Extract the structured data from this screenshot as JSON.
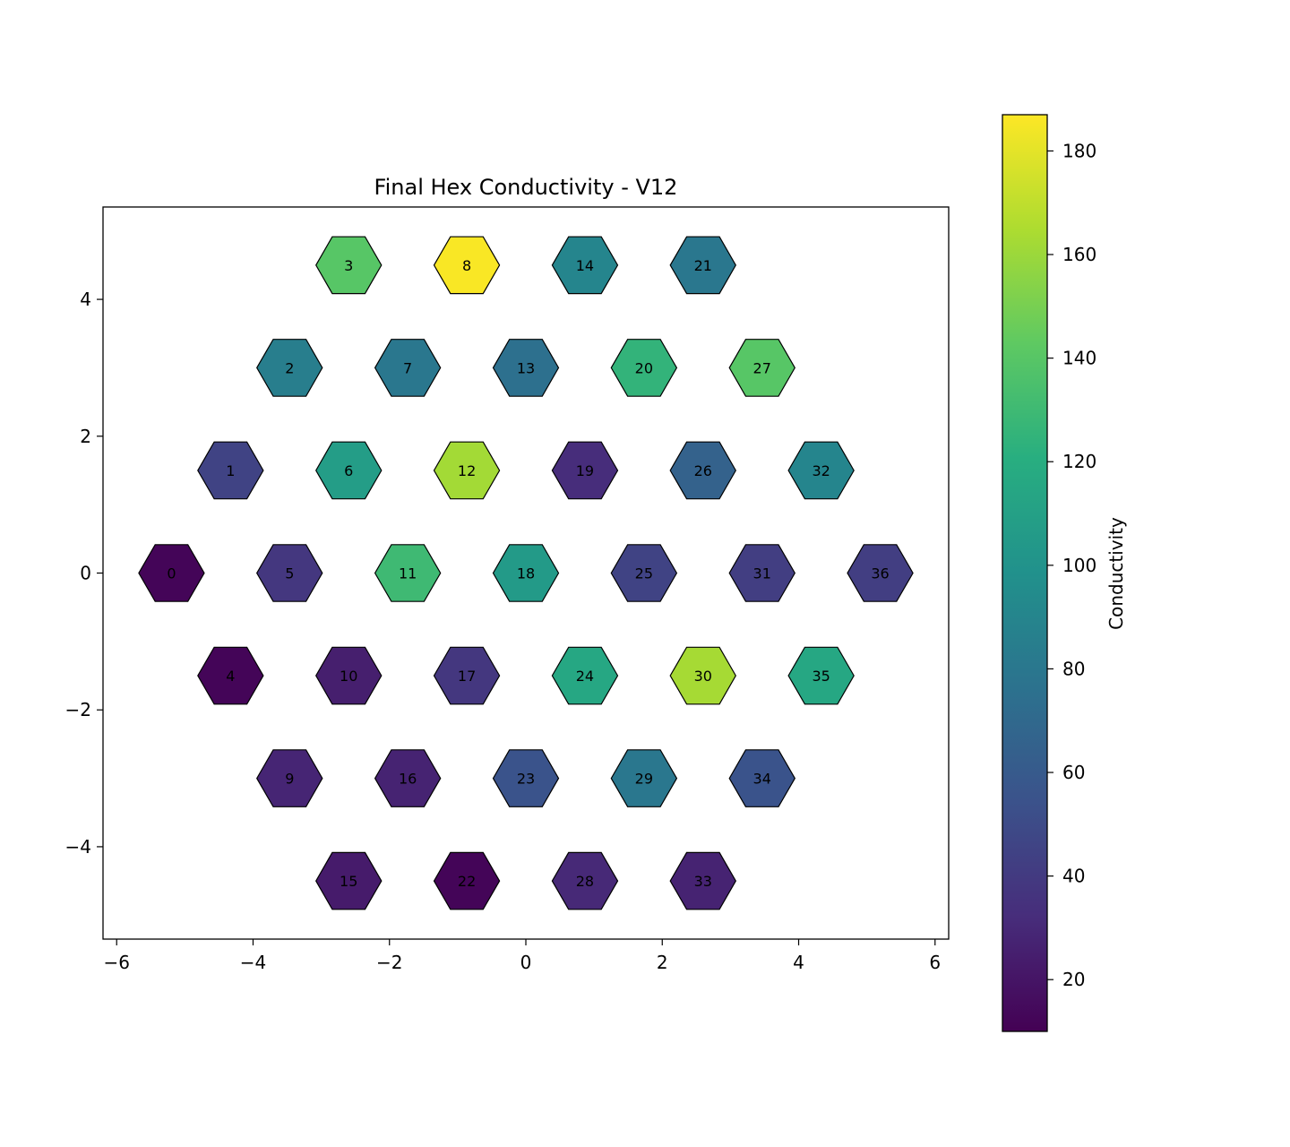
{
  "chart_data": {
    "type": "heatmap",
    "title": "Final Hex Conductivity - V12",
    "xlim": [
      -6.2,
      6.2
    ],
    "ylim": [
      -5.35,
      5.35
    ],
    "x_ticks": [
      -6,
      -4,
      -2,
      0,
      2,
      4,
      6
    ],
    "y_ticks": [
      -4,
      -2,
      0,
      2,
      4
    ],
    "hexes": [
      {
        "id": "0",
        "x": -5.196,
        "y": 0.0,
        "value": 12
      },
      {
        "id": "1",
        "x": -4.33,
        "y": 1.5,
        "value": 45
      },
      {
        "id": "2",
        "x": -3.464,
        "y": 3.0,
        "value": 85
      },
      {
        "id": "3",
        "x": -2.598,
        "y": 4.5,
        "value": 140
      },
      {
        "id": "4",
        "x": -4.33,
        "y": -1.5,
        "value": 12
      },
      {
        "id": "5",
        "x": -3.464,
        "y": 0.0,
        "value": 38
      },
      {
        "id": "6",
        "x": -2.598,
        "y": 1.5,
        "value": 108
      },
      {
        "id": "7",
        "x": -1.732,
        "y": 3.0,
        "value": 80
      },
      {
        "id": "8",
        "x": -0.866,
        "y": 4.5,
        "value": 186
      },
      {
        "id": "9",
        "x": -3.464,
        "y": -3.0,
        "value": 28
      },
      {
        "id": "10",
        "x": -2.598,
        "y": -1.5,
        "value": 25
      },
      {
        "id": "11",
        "x": -1.732,
        "y": 0.0,
        "value": 130
      },
      {
        "id": "12",
        "x": -0.866,
        "y": 1.5,
        "value": 162
      },
      {
        "id": "13",
        "x": 0.0,
        "y": 3.0,
        "value": 75
      },
      {
        "id": "14",
        "x": 0.866,
        "y": 4.5,
        "value": 90
      },
      {
        "id": "15",
        "x": -2.598,
        "y": -4.5,
        "value": 23
      },
      {
        "id": "16",
        "x": -1.732,
        "y": -3.0,
        "value": 27
      },
      {
        "id": "17",
        "x": -0.866,
        "y": -1.5,
        "value": 38
      },
      {
        "id": "18",
        "x": 0.0,
        "y": 0.0,
        "value": 105
      },
      {
        "id": "19",
        "x": 0.866,
        "y": 1.5,
        "value": 32
      },
      {
        "id": "20",
        "x": 1.732,
        "y": 3.0,
        "value": 125
      },
      {
        "id": "21",
        "x": 2.598,
        "y": 4.5,
        "value": 80
      },
      {
        "id": "22",
        "x": -0.866,
        "y": -4.5,
        "value": 12
      },
      {
        "id": "23",
        "x": 0.0,
        "y": -3.0,
        "value": 55
      },
      {
        "id": "24",
        "x": 0.866,
        "y": -1.5,
        "value": 115
      },
      {
        "id": "25",
        "x": 1.732,
        "y": 0.0,
        "value": 45
      },
      {
        "id": "26",
        "x": 2.598,
        "y": 1.5,
        "value": 65
      },
      {
        "id": "27",
        "x": 3.464,
        "y": 3.0,
        "value": 140
      },
      {
        "id": "28",
        "x": 0.866,
        "y": -4.5,
        "value": 30
      },
      {
        "id": "29",
        "x": 1.732,
        "y": -3.0,
        "value": 80
      },
      {
        "id": "30",
        "x": 2.598,
        "y": -1.5,
        "value": 163
      },
      {
        "id": "31",
        "x": 3.464,
        "y": 0.0,
        "value": 42
      },
      {
        "id": "32",
        "x": 4.33,
        "y": 1.5,
        "value": 90
      },
      {
        "id": "33",
        "x": 2.598,
        "y": -4.5,
        "value": 27
      },
      {
        "id": "34",
        "x": 3.464,
        "y": -3.0,
        "value": 55
      },
      {
        "id": "35",
        "x": 4.33,
        "y": -1.5,
        "value": 115
      },
      {
        "id": "36",
        "x": 5.196,
        "y": 0.0,
        "value": 42
      }
    ],
    "colorbar": {
      "label": "Conductivity",
      "range": [
        10,
        187
      ],
      "ticks": [
        20,
        40,
        60,
        80,
        100,
        120,
        140,
        160,
        180
      ],
      "colormap": "viridis"
    }
  }
}
